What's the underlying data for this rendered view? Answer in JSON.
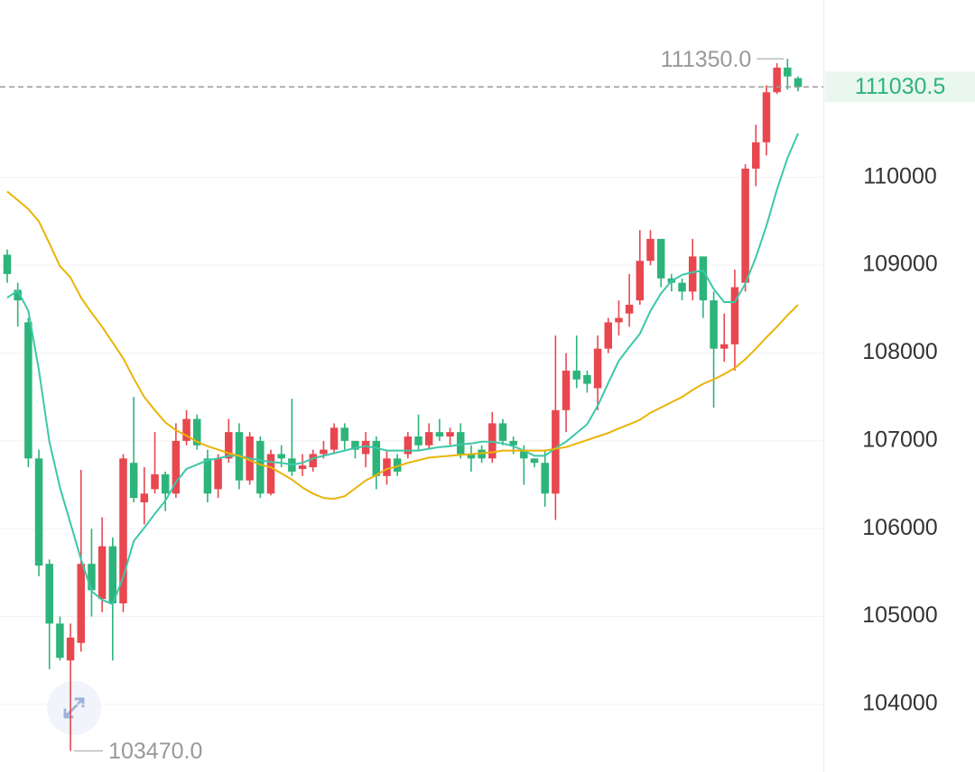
{
  "chart_data": {
    "type": "candlestick",
    "ylim": [
      103230,
      112020
    ],
    "yticks": [
      104000,
      105000,
      106000,
      107000,
      108000,
      109000,
      110000
    ],
    "grid": true,
    "up_color": "#e8474f",
    "down_color": "#2db47a",
    "open": [
      109120,
      108720,
      108350,
      106800,
      105600,
      104920,
      104500,
      104700,
      105600,
      105200,
      105800,
      105150,
      106750,
      106300,
      106450,
      106620,
      106400,
      107000,
      107250,
      106800,
      106450,
      106800,
      107100,
      106550,
      107000,
      106400,
      106850,
      106800,
      106680,
      106700,
      106850,
      106900,
      107150,
      107000,
      106850,
      107000,
      106600,
      106800,
      106850,
      107050,
      106950,
      107100,
      107050,
      107100,
      106850,
      106900,
      106800,
      107200,
      107000,
      106900,
      106800,
      106750,
      106400,
      107350,
      107800,
      107750,
      107600,
      108050,
      108350,
      108450,
      108600,
      109050,
      109300,
      108850,
      108800,
      108700,
      109100,
      108600,
      108050,
      108100,
      108800,
      110100,
      110400,
      110970,
      111250,
      111130
    ],
    "high": [
      109180,
      108800,
      108400,
      106900,
      105650,
      105000,
      104920,
      106670,
      106000,
      106130,
      105900,
      106850,
      107500,
      106700,
      107100,
      106650,
      107200,
      107350,
      107300,
      106900,
      106850,
      107250,
      107200,
      107100,
      107050,
      106900,
      106950,
      107480,
      106850,
      106900,
      107000,
      107200,
      107200,
      107000,
      107100,
      107050,
      106900,
      106850,
      107100,
      107300,
      107200,
      107250,
      107150,
      107200,
      106950,
      106950,
      107330,
      107250,
      107050,
      106950,
      106800,
      106900,
      108200,
      108000,
      108200,
      107800,
      108200,
      108400,
      108600,
      108900,
      109400,
      109400,
      109300,
      108900,
      108850,
      109300,
      109100,
      108700,
      108450,
      108950,
      110150,
      110600,
      111050,
      111300,
      111350,
      111150
    ],
    "low": [
      108800,
      108300,
      106700,
      105460,
      104400,
      104500,
      103470,
      104600,
      105000,
      105050,
      104500,
      105050,
      106300,
      106050,
      106400,
      106200,
      106350,
      106950,
      106900,
      106300,
      106350,
      106750,
      106450,
      106500,
      106350,
      106380,
      106700,
      106600,
      106600,
      106650,
      106800,
      106850,
      106900,
      106800,
      106700,
      106450,
      106500,
      106600,
      106800,
      106900,
      106900,
      107000,
      106950,
      106800,
      106650,
      106750,
      106750,
      106950,
      106850,
      106500,
      106700,
      106250,
      106100,
      107100,
      107600,
      107550,
      107350,
      108000,
      108200,
      108300,
      108550,
      109000,
      108750,
      108700,
      108600,
      108600,
      108400,
      107380,
      107900,
      107800,
      108700,
      109900,
      110250,
      110950,
      111000,
      110980
    ],
    "close": [
      108900,
      108600,
      106800,
      105580,
      104920,
      104530,
      104760,
      105600,
      105300,
      105800,
      105150,
      106800,
      106350,
      106400,
      106620,
      106400,
      107000,
      107250,
      106950,
      106400,
      106800,
      107100,
      106550,
      107050,
      106400,
      106850,
      106800,
      106650,
      106720,
      106850,
      106900,
      107150,
      107000,
      106900,
      107000,
      106600,
      106800,
      106650,
      107050,
      106950,
      107100,
      107050,
      107100,
      106850,
      106800,
      106800,
      107200,
      107000,
      106950,
      106800,
      106750,
      106400,
      107350,
      107800,
      107700,
      107650,
      108050,
      108350,
      108400,
      108550,
      109050,
      109300,
      108850,
      108800,
      108700,
      109100,
      108600,
      108050,
      108100,
      108750,
      110100,
      110400,
      110970,
      111250,
      111150,
      111030.5
    ],
    "lines": [
      {
        "color": "#3cc7a8",
        "values": [
          108630,
          108710,
          108480,
          107810,
          106990,
          106470,
          106060,
          105650,
          105290,
          105190,
          105140,
          105450,
          105860,
          106010,
          106170,
          106320,
          106530,
          106680,
          106730,
          106780,
          106800,
          106830,
          106830,
          106800,
          106780,
          106760,
          106750,
          106730,
          106750,
          106800,
          106830,
          106860,
          106890,
          106920,
          106940,
          106920,
          106890,
          106890,
          106890,
          106890,
          106910,
          106930,
          106940,
          106960,
          106970,
          106990,
          106990,
          106970,
          106940,
          106890,
          106830,
          106830,
          106920,
          106990,
          107090,
          107190,
          107400,
          107660,
          107910,
          108070,
          108220,
          108480,
          108680,
          108820,
          108890,
          108920,
          108940,
          108730,
          108580,
          108580,
          108790,
          109090,
          109450,
          109860,
          110220,
          110500
        ]
      },
      {
        "color": "#eab308",
        "values": [
          109840,
          109740,
          109640,
          109500,
          109250,
          108990,
          108860,
          108630,
          108460,
          108300,
          108120,
          107940,
          107710,
          107500,
          107350,
          107210,
          107120,
          107060,
          106990,
          106940,
          106900,
          106860,
          106830,
          106780,
          106730,
          106700,
          106630,
          106560,
          106470,
          106400,
          106350,
          106340,
          106370,
          106460,
          106550,
          106610,
          106680,
          106710,
          106750,
          106780,
          106810,
          106820,
          106830,
          106840,
          106850,
          106860,
          106870,
          106890,
          106890,
          106890,
          106890,
          106890,
          106910,
          106930,
          106970,
          107010,
          107050,
          107090,
          107140,
          107190,
          107240,
          107320,
          107380,
          107440,
          107500,
          107580,
          107650,
          107700,
          107760,
          107830,
          107930,
          108050,
          108180,
          108300,
          108430,
          108550
        ]
      }
    ],
    "high_mark": {
      "value": 111350,
      "label": "111350.0"
    },
    "low_mark": {
      "value": 103470,
      "label": "103470.0"
    },
    "last_price": 111030.5
  }
}
